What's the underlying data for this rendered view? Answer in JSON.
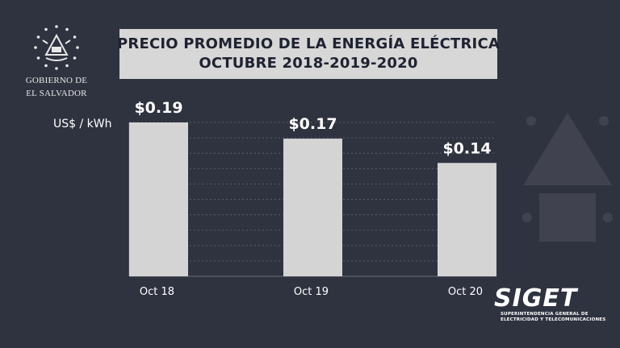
{
  "header": {
    "title_line1": "PRECIO PROMEDIO DE LA ENERGÍA ELÉCTRICA",
    "title_line2": "OCTUBRE 2018-2019-2020"
  },
  "logo_left": {
    "line1": "GOBIERNO DE",
    "line2": "EL SALVADOR"
  },
  "logo_right": {
    "name": "SIGET",
    "sub_line1": "SUPERINTENDENCIA GENERAL DE",
    "sub_line2": "ELECTRICIDAD Y TELECOMUNICACIONES"
  },
  "colors": {
    "background": "#2f3340",
    "bar": "#d4d4d4",
    "title_box": "#d7d7d7",
    "text": "#ffffff"
  },
  "chart_data": {
    "type": "bar",
    "title": "PRECIO PROMEDIO DE LA ENERGÍA ELÉCTRICA OCTUBRE 2018-2019-2020",
    "ylabel": "US$ / kWh",
    "categories": [
      "Oct 18",
      "Oct 19",
      "Oct 20"
    ],
    "values": [
      0.19,
      0.17,
      0.14
    ],
    "data_labels": [
      "$0.19",
      "$0.17",
      "$0.14"
    ],
    "ylim": [
      0,
      0.19
    ],
    "grid": true
  }
}
